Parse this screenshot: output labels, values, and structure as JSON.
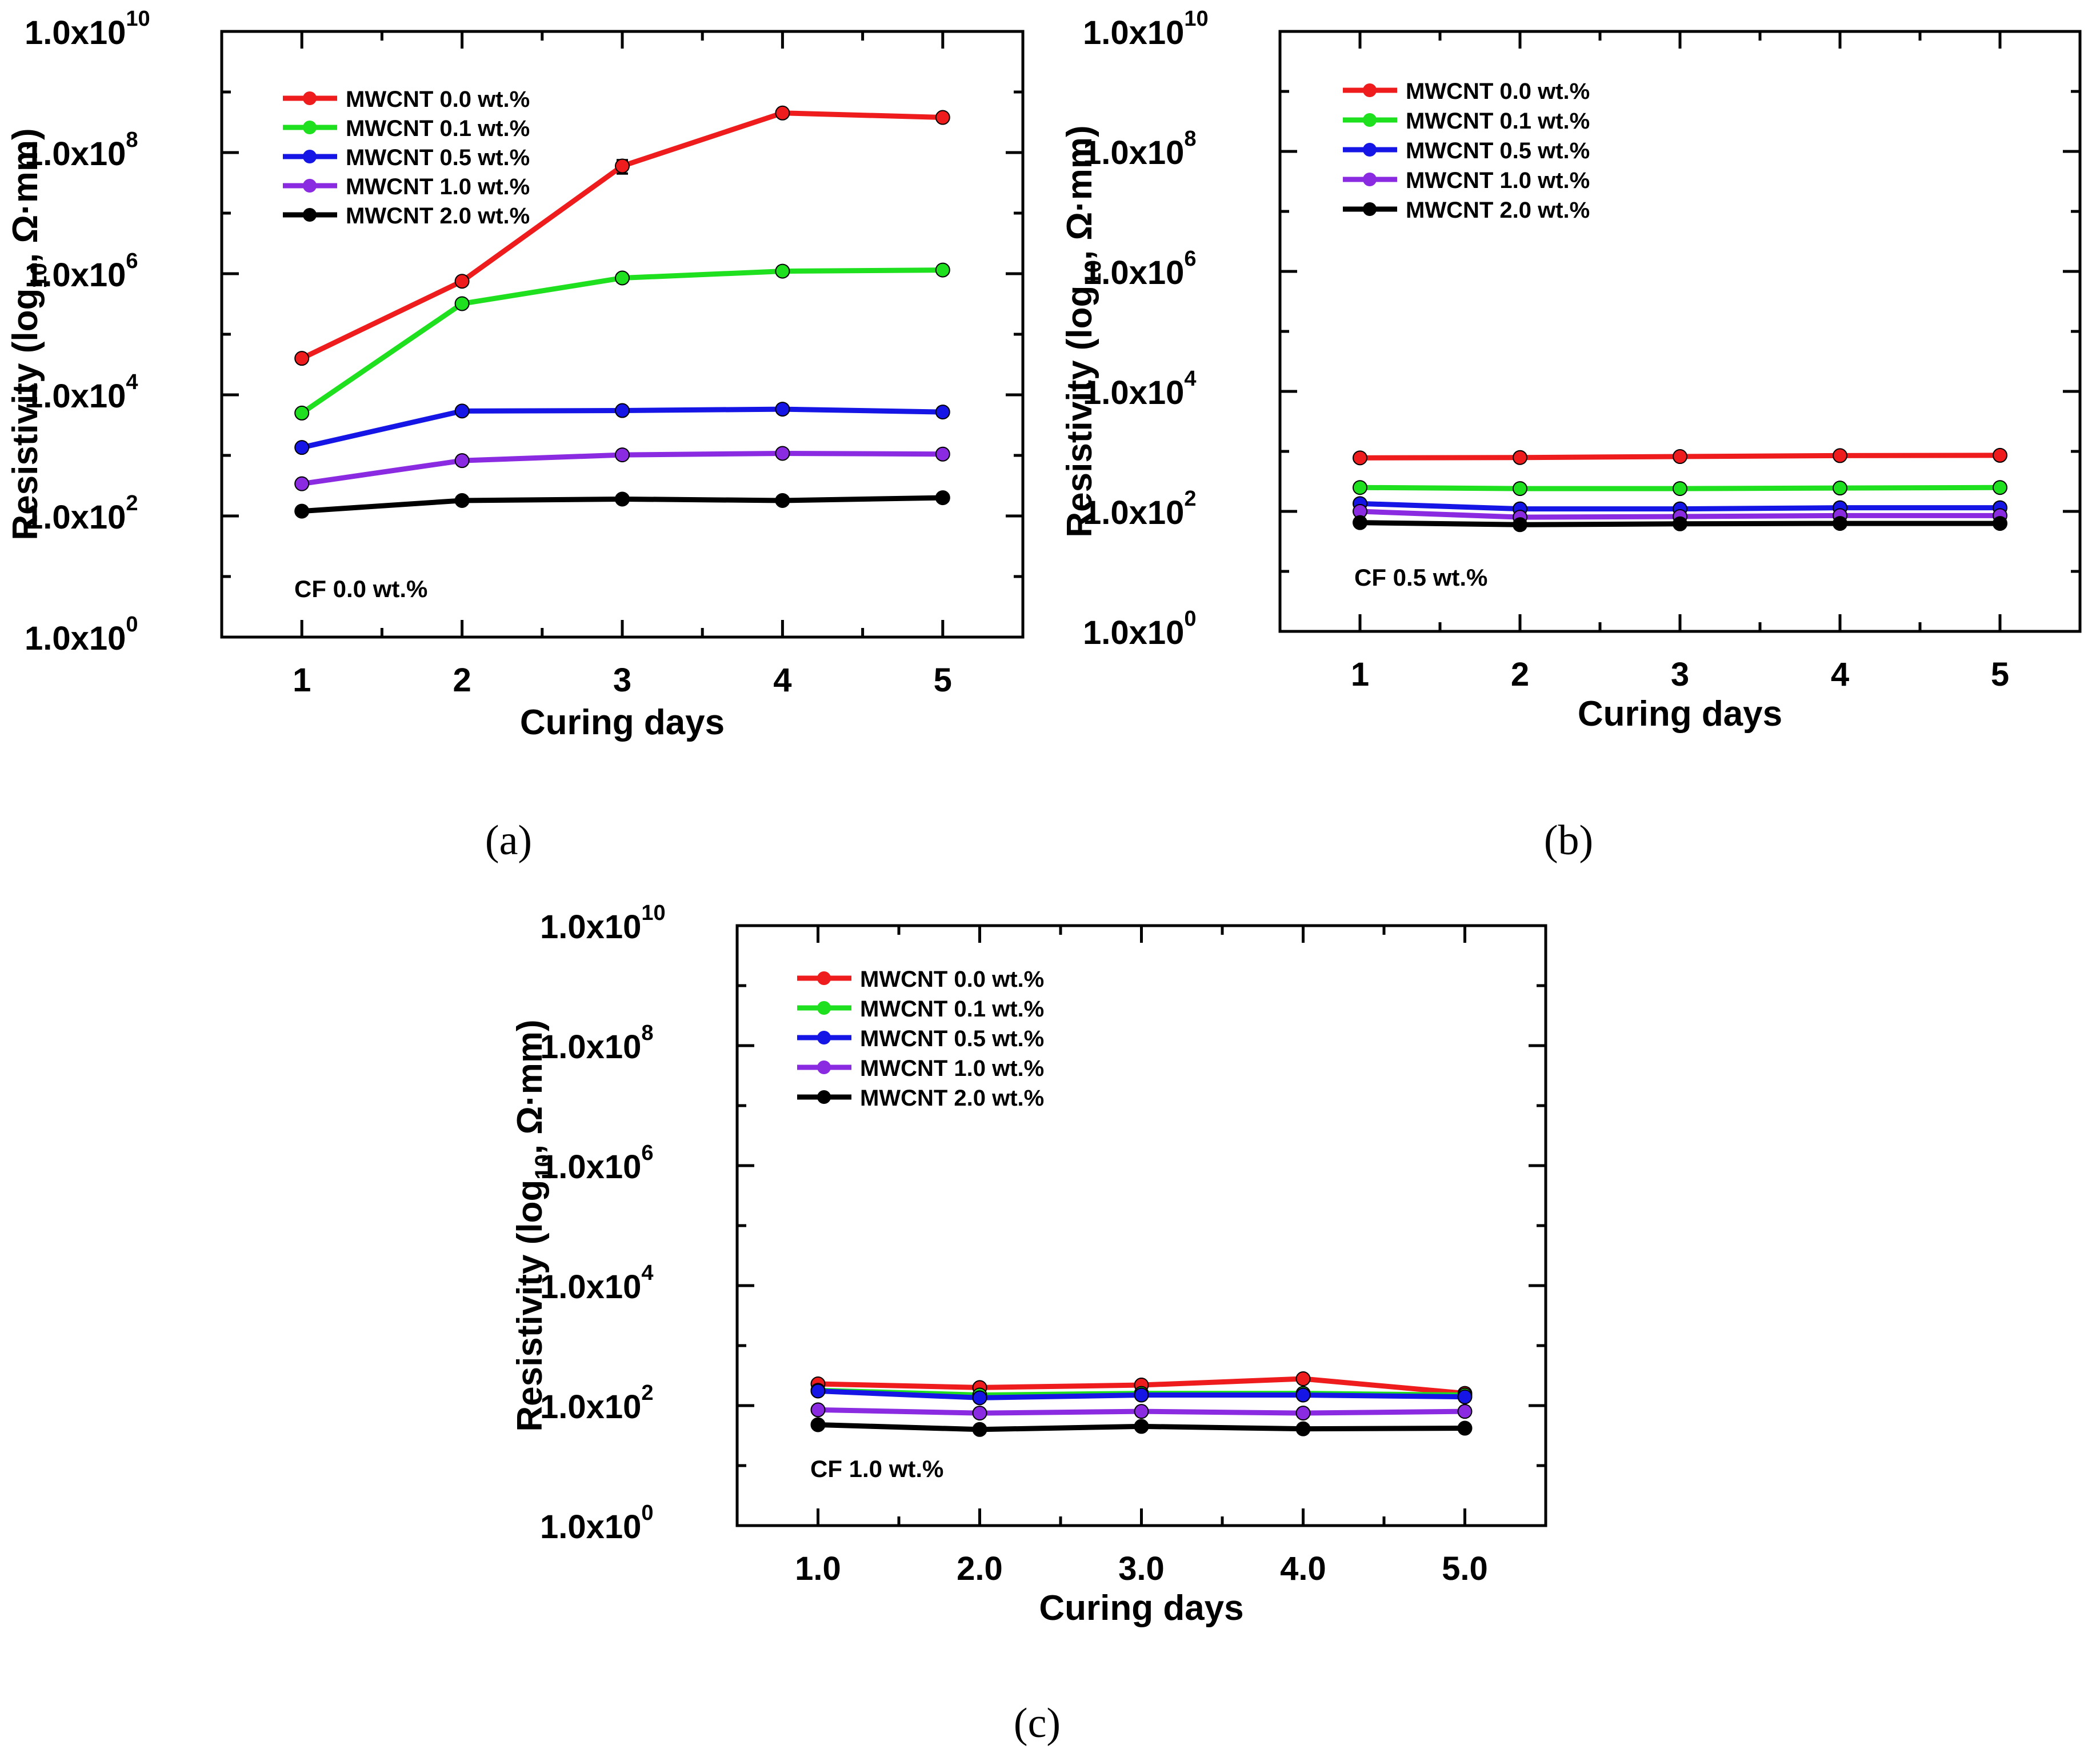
{
  "chart_data": [
    {
      "panel": "(a)",
      "type": "line",
      "xlabel": "Curing days",
      "ylabel_main": "Resistivity (log",
      "ylabel_sub": "10",
      "ylabel_tail": ", Ω·mm)",
      "annotation": "CF 0.0 wt.%",
      "x": [
        1,
        2,
        3,
        4,
        5
      ],
      "x_tick_labels": [
        "1",
        "2",
        "3",
        "4",
        "5"
      ],
      "xlim": [
        0.5,
        5.5
      ],
      "y_scale": "log",
      "ylim": [
        1,
        10000000000
      ],
      "y_tick_mantissa": [
        "1.0x10",
        "1.0x10",
        "1.0x10",
        "1.0x10",
        "1.0x10",
        "1.0x10"
      ],
      "y_tick_exponent": [
        "0",
        "2",
        "4",
        "6",
        "8",
        "10"
      ],
      "y_tick_values": [
        1,
        100,
        10000,
        1000000,
        100000000,
        10000000000
      ],
      "legend_position": "top-left",
      "series": [
        {
          "name": "MWCNT 0.0 wt.%",
          "color": "#ee1c1c",
          "values": [
            40000,
            750000,
            60000000,
            450000000,
            380000000
          ],
          "errors": [
            3000,
            80000,
            15000000,
            30000000,
            40000000
          ]
        },
        {
          "name": "MWCNT 0.1 wt.%",
          "color": "#1fe01f",
          "values": [
            5000,
            320000,
            850000,
            1100000,
            1150000
          ],
          "errors": [
            500,
            40000,
            120000,
            150000,
            120000
          ]
        },
        {
          "name": "MWCNT 0.5 wt.%",
          "color": "#1515e6",
          "values": [
            1350,
            5400,
            5500,
            5800,
            5200
          ],
          "errors": [
            100,
            300,
            300,
            300,
            300
          ]
        },
        {
          "name": "MWCNT 1.0 wt.%",
          "color": "#8a2be2",
          "values": [
            340,
            820,
            1020,
            1080,
            1050
          ],
          "errors": [
            30,
            60,
            60,
            60,
            60
          ]
        },
        {
          "name": "MWCNT 2.0 wt.%",
          "color": "#000000",
          "values": [
            120,
            180,
            190,
            180,
            200
          ],
          "errors": [
            10,
            10,
            10,
            10,
            10
          ]
        }
      ]
    },
    {
      "panel": "(b)",
      "type": "line",
      "xlabel": "Curing days",
      "ylabel_main": "Resistivity (log",
      "ylabel_sub": "10",
      "ylabel_tail": ", Ω·mm)",
      "annotation": "CF 0.5 wt.%",
      "x": [
        1,
        2,
        3,
        4,
        5
      ],
      "x_tick_labels": [
        "1",
        "2",
        "3",
        "4",
        "5"
      ],
      "xlim": [
        0.5,
        5.5
      ],
      "y_scale": "log",
      "ylim": [
        1,
        10000000000
      ],
      "y_tick_mantissa": [
        "1.0x10",
        "1.0x10",
        "1.0x10",
        "1.0x10",
        "1.0x10",
        "1.0x10"
      ],
      "y_tick_exponent": [
        "0",
        "2",
        "4",
        "6",
        "8",
        "10"
      ],
      "y_tick_values": [
        1,
        100,
        10000,
        1000000,
        100000000,
        10000000000
      ],
      "legend_position": "top-left",
      "series": [
        {
          "name": "MWCNT 0.0 wt.%",
          "color": "#ee1c1c",
          "values": [
            780,
            790,
            820,
            850,
            860
          ],
          "errors": [
            40,
            40,
            40,
            40,
            40
          ]
        },
        {
          "name": "MWCNT 0.1 wt.%",
          "color": "#1fe01f",
          "values": [
            250,
            240,
            240,
            245,
            250
          ],
          "errors": [
            15,
            15,
            15,
            15,
            15
          ]
        },
        {
          "name": "MWCNT 0.5 wt.%",
          "color": "#1515e6",
          "values": [
            135,
            110,
            110,
            115,
            115
          ],
          "errors": [
            8,
            8,
            8,
            8,
            8
          ]
        },
        {
          "name": "MWCNT 1.0 wt.%",
          "color": "#8a2be2",
          "values": [
            100,
            80,
            82,
            85,
            85
          ],
          "errors": [
            6,
            6,
            6,
            6,
            6
          ]
        },
        {
          "name": "MWCNT 2.0 wt.%",
          "color": "#000000",
          "values": [
            65,
            60,
            62,
            63,
            63
          ],
          "errors": [
            4,
            4,
            4,
            4,
            4
          ]
        }
      ]
    },
    {
      "panel": "(c)",
      "type": "line",
      "xlabel": "Curing days",
      "ylabel_main": "Resistivity (log",
      "ylabel_sub": "10",
      "ylabel_tail": ", Ω·mm)",
      "annotation": "CF 1.0 wt.%",
      "x": [
        1,
        2,
        3,
        4,
        5
      ],
      "x_tick_labels": [
        "1.0",
        "2.0",
        "3.0",
        "4.0",
        "5.0"
      ],
      "xlim": [
        0.5,
        5.5
      ],
      "y_scale": "log",
      "ylim": [
        1,
        10000000000
      ],
      "y_tick_mantissa": [
        "1.0x10",
        "1.0x10",
        "1.0x10",
        "1.0x10",
        "1.0x10",
        "1.0x10"
      ],
      "y_tick_exponent": [
        "0",
        "2",
        "4",
        "6",
        "8",
        "10"
      ],
      "y_tick_values": [
        1,
        100,
        10000,
        1000000,
        100000000,
        10000000000
      ],
      "legend_position": "top-left",
      "series": [
        {
          "name": "MWCNT 0.0 wt.%",
          "color": "#ee1c1c",
          "values": [
            230,
            200,
            220,
            280,
            160
          ],
          "errors": [
            10,
            10,
            10,
            15,
            10
          ]
        },
        {
          "name": "MWCNT 0.1 wt.%",
          "color": "#1fe01f",
          "values": [
            180,
            150,
            160,
            160,
            150
          ],
          "errors": [
            8,
            8,
            8,
            8,
            8
          ]
        },
        {
          "name": "MWCNT 0.5 wt.%",
          "color": "#1515e6",
          "values": [
            175,
            135,
            150,
            150,
            140
          ],
          "errors": [
            8,
            8,
            8,
            8,
            8
          ]
        },
        {
          "name": "MWCNT 1.0 wt.%",
          "color": "#8a2be2",
          "values": [
            85,
            75,
            80,
            75,
            80
          ],
          "errors": [
            5,
            5,
            5,
            5,
            5
          ]
        },
        {
          "name": "MWCNT 2.0 wt.%",
          "color": "#000000",
          "values": [
            48,
            40,
            45,
            41,
            42
          ],
          "errors": [
            3,
            3,
            3,
            3,
            3
          ]
        }
      ]
    }
  ],
  "captions": [
    "(a)",
    "(b)",
    "(c)"
  ]
}
